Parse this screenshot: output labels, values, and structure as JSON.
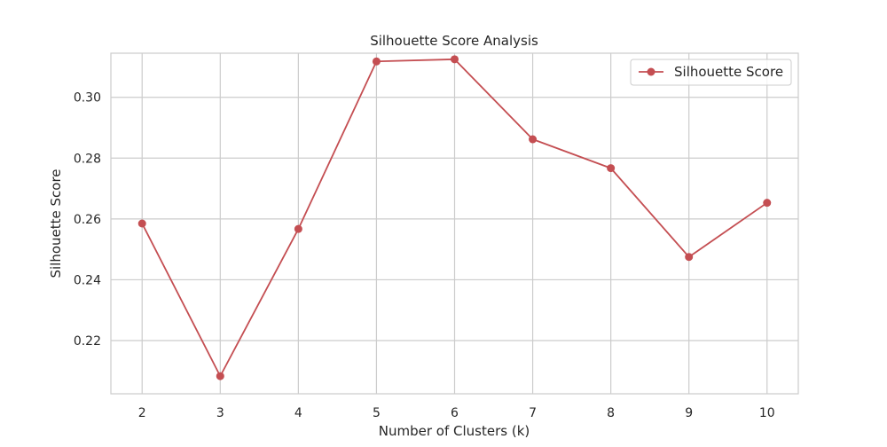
{
  "chart_data": {
    "type": "line",
    "title": "Silhouette Score Analysis",
    "xlabel": "Number of Clusters (k)",
    "ylabel": "Silhouette Score",
    "x": [
      2,
      3,
      4,
      5,
      6,
      7,
      8,
      9,
      10
    ],
    "x_ticks": [
      "2",
      "3",
      "4",
      "5",
      "6",
      "7",
      "8",
      "9",
      "10"
    ],
    "y_ticks": [
      "0.22",
      "0.24",
      "0.26",
      "0.28",
      "0.30"
    ],
    "xlim": [
      1.6,
      10.4
    ],
    "ylim": [
      0.2025,
      0.3145
    ],
    "grid": true,
    "legend_position": "top-right",
    "series": [
      {
        "name": "Silhouette Score",
        "color": "#c44e52",
        "marker": "circle",
        "values": [
          0.2585,
          0.2083,
          0.2567,
          0.3118,
          0.3125,
          0.2862,
          0.2767,
          0.2475,
          0.2653
        ]
      }
    ]
  },
  "colors": {
    "grid": "#cccccc",
    "frame": "#cccccc",
    "text": "#262626",
    "background": "#ffffff"
  }
}
